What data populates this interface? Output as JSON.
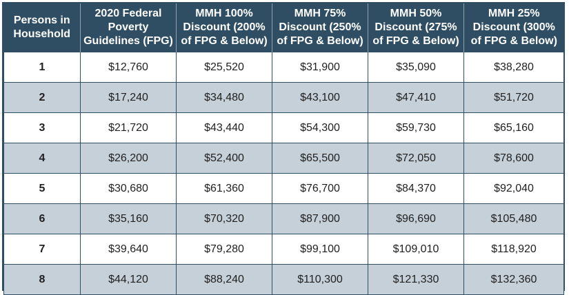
{
  "table": {
    "headers": [
      "Persons in Household",
      "2020 Federal Poverty Guidelines (FPG)",
      "MMH 100% Discount (200% of FPG & Below)",
      "MMH 75% Discount (250% of FPG & Below)",
      "MMH 50% Discount (275% of FPG & Below)",
      "MMH 25% Discount (300% of FPG & Below)"
    ],
    "rows": [
      [
        "1",
        "$12,760",
        "$25,520",
        "$31,900",
        "$35,090",
        "$38,280"
      ],
      [
        "2",
        "$17,240",
        "$34,480",
        "$43,100",
        "$47,410",
        "$51,720"
      ],
      [
        "3",
        "$21,720",
        "$43,440",
        "$54,300",
        "$59,730",
        "$65,160"
      ],
      [
        "4",
        "$26,200",
        "$52,400",
        "$65,500",
        "$72,050",
        "$78,600"
      ],
      [
        "5",
        "$30,680",
        "$61,360",
        "$76,700",
        "$84,370",
        "$92,040"
      ],
      [
        "6",
        "$35,160",
        "$70,320",
        "$87,900",
        "$96,690",
        "$105,480"
      ],
      [
        "7",
        "$39,640",
        "$79,280",
        "$99,100",
        "$109,010",
        "$118,920"
      ],
      [
        "8",
        "$44,120",
        "$88,240",
        "$110,300",
        "$121,330",
        "$132,360"
      ]
    ]
  },
  "colors": {
    "header_bg": "#2f4e63",
    "header_text": "#ffffff",
    "row_alt_bg": "#c5d0d8",
    "row_bg": "#ffffff"
  }
}
